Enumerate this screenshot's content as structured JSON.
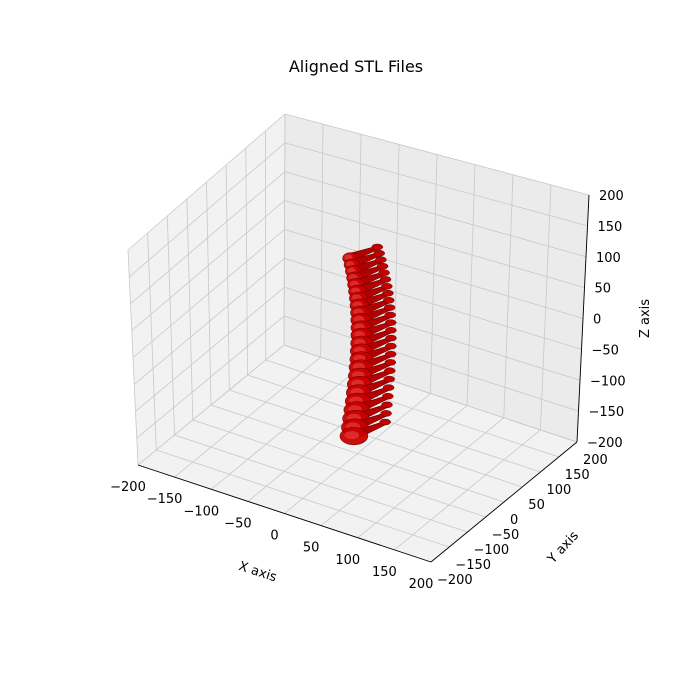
{
  "chart_data": {
    "type": "3d-surface",
    "title": "Aligned STL Files",
    "xlabel": "X axis",
    "ylabel": "Y axis",
    "zlabel": "Z axis",
    "xlim": [
      -200,
      200
    ],
    "ylim": [
      -200,
      200
    ],
    "zlim": [
      -200,
      200
    ],
    "x_ticks": [
      "−200",
      "−150",
      "−100",
      "−50",
      "0",
      "50",
      "100",
      "150",
      "200"
    ],
    "y_ticks": [
      "−200",
      "−150",
      "−100",
      "−50",
      "0",
      "50",
      "100",
      "150",
      "200"
    ],
    "z_ticks": [
      "−200",
      "−150",
      "−100",
      "−50",
      "0",
      "50",
      "100",
      "150",
      "200"
    ],
    "grid": true,
    "surface_color": "#cc0000",
    "pane_colors": {
      "left": "#f2f2f2",
      "back": "#ebebeb",
      "floor": "#f2f2f2"
    },
    "object": "spine",
    "vertebra_count": 24
  }
}
